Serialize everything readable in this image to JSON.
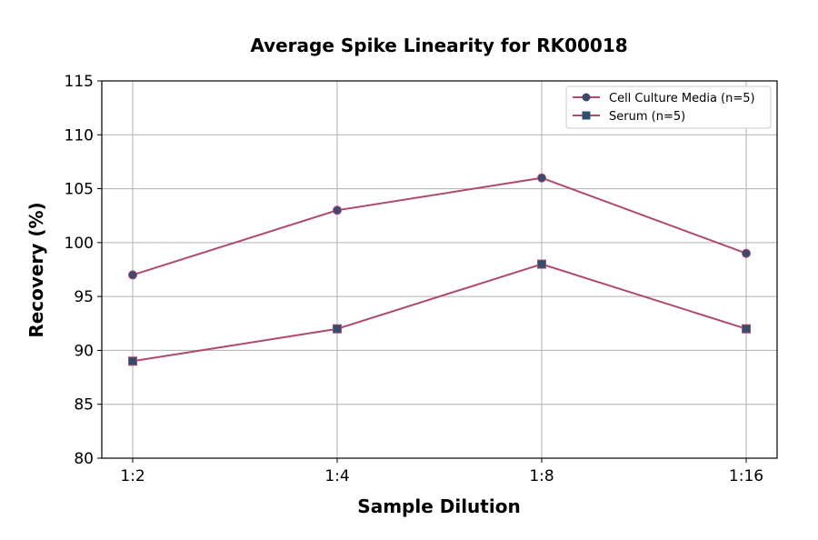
{
  "chart_data": {
    "type": "line",
    "title": "Average Spike Linearity for RK00018",
    "xlabel": "Sample Dilution",
    "ylabel": "Recovery (%)",
    "categories": [
      "1:2",
      "1:4",
      "1:8",
      "1:16"
    ],
    "ylim": [
      80,
      115
    ],
    "yticks": [
      80,
      85,
      90,
      95,
      100,
      105,
      110,
      115
    ],
    "grid": true,
    "legend_position": "top-right",
    "series": [
      {
        "name": "Cell Culture Media (n=5)",
        "values": [
          97,
          103,
          106,
          99
        ],
        "marker": "circle",
        "line_color": "#b04a70",
        "marker_color": "#3b4a6e"
      },
      {
        "name": "Serum (n=5)",
        "values": [
          89,
          92,
          98,
          92
        ],
        "marker": "square",
        "line_color": "#b04a70",
        "marker_color": "#2f4f6f"
      }
    ]
  }
}
